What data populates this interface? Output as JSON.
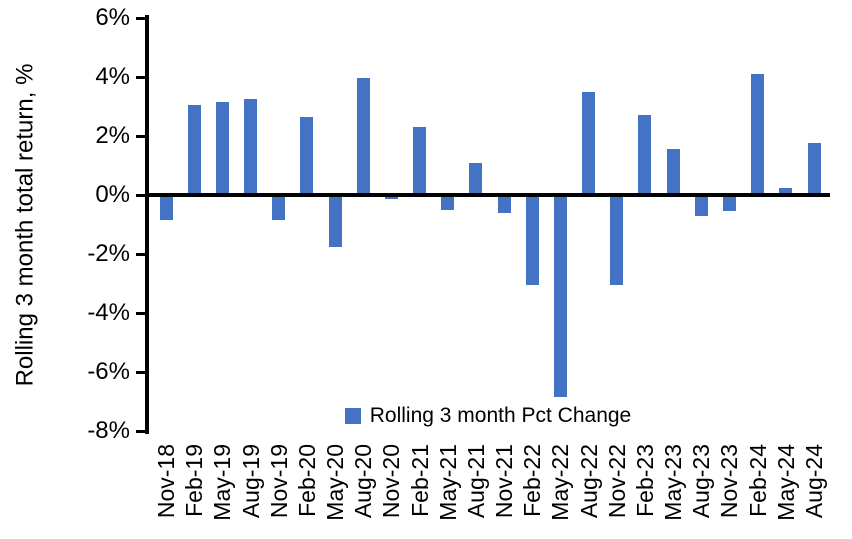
{
  "chart_data": {
    "type": "bar",
    "title": "",
    "xlabel": "",
    "ylabel": "Rolling 3 month total return, %",
    "categories": [
      "Nov-18",
      "Feb-19",
      "May-19",
      "Aug-19",
      "Nov-19",
      "Feb-20",
      "May-20",
      "Aug-20",
      "Nov-20",
      "Feb-21",
      "May-21",
      "Aug-21",
      "Nov-21",
      "Feb-22",
      "May-22",
      "Aug-22",
      "Nov-22",
      "Feb-23",
      "May-23",
      "Aug-23",
      "Nov-23",
      "Feb-24",
      "May-24",
      "Aug-24"
    ],
    "values": [
      -0.85,
      3.05,
      3.15,
      3.25,
      -0.85,
      2.65,
      -1.75,
      3.95,
      -0.15,
      2.3,
      -0.5,
      1.1,
      -0.6,
      -3.05,
      -6.85,
      3.5,
      -3.05,
      2.7,
      1.55,
      -0.7,
      -0.55,
      4.1,
      0.25,
      1.75
    ],
    "ylim": [
      -8,
      6
    ],
    "yticks": {
      "values": [
        6,
        4,
        2,
        0,
        -2,
        -4,
        -6,
        -8
      ],
      "labels": [
        "6%",
        "4%",
        "2%",
        "0%",
        "-2%",
        "-4%",
        "-6%",
        "-8%"
      ]
    },
    "legend": {
      "label": "Rolling 3 month Pct Change",
      "marker": "square",
      "position": "bottom-center"
    },
    "grid": false,
    "x_label_rotation": -90,
    "colors": {
      "bar": "#4472C4",
      "axis": "#000000",
      "text": "#000000",
      "background": "#FFFFFF"
    }
  }
}
